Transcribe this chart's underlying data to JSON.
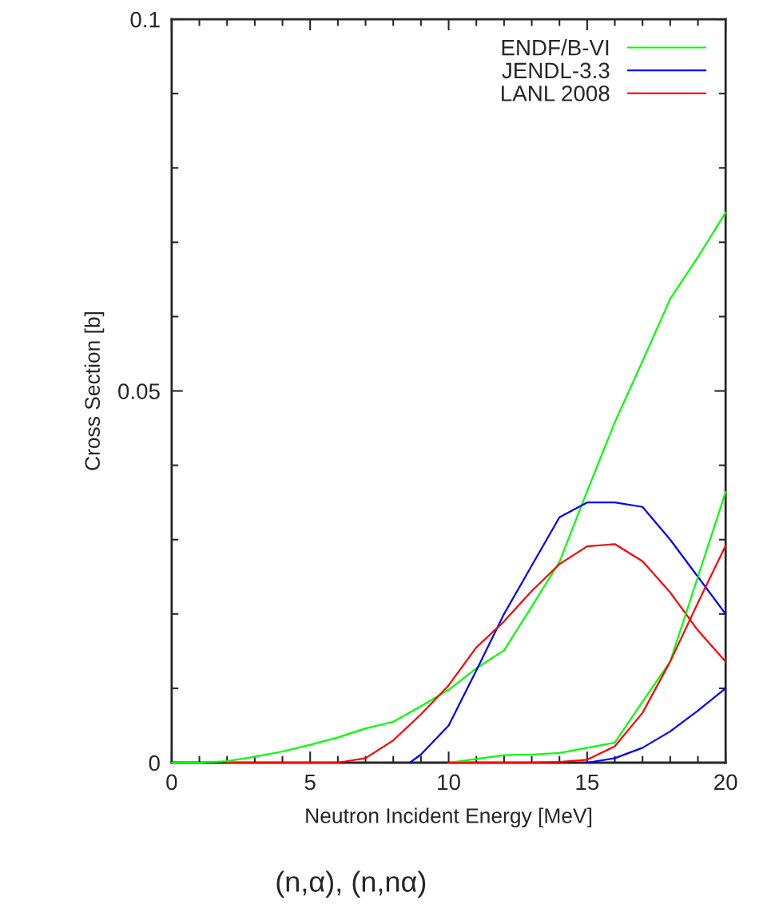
{
  "chart_data": {
    "type": "line",
    "title": "(n,α), (n,nα)",
    "xlabel": "Neutron Incident Energy [MeV]",
    "ylabel": "Cross Section [b]",
    "xlim": [
      0,
      20
    ],
    "ylim": [
      0,
      0.1
    ],
    "xticks": [
      0,
      {
        "value": 1,
        "label": null
      },
      {
        "value": 2,
        "label": null
      },
      {
        "value": 3,
        "label": null
      },
      {
        "value": 4,
        "label": null
      },
      5,
      {
        "value": 6,
        "label": null
      },
      {
        "value": 7,
        "label": null
      },
      {
        "value": 8,
        "label": null
      },
      {
        "value": 9,
        "label": null
      },
      10,
      {
        "value": 11,
        "label": null
      },
      {
        "value": 12,
        "label": null
      },
      {
        "value": 13,
        "label": null
      },
      {
        "value": 14,
        "label": null
      },
      15,
      {
        "value": 16,
        "label": null
      },
      {
        "value": 17,
        "label": null
      },
      {
        "value": 18,
        "label": null
      },
      {
        "value": 19,
        "label": null
      },
      20
    ],
    "yticks": [
      0,
      {
        "value": 0.01,
        "label": null
      },
      {
        "value": 0.02,
        "label": null
      },
      {
        "value": 0.03,
        "label": null
      },
      {
        "value": 0.04,
        "label": null
      },
      0.05,
      {
        "value": 0.06,
        "label": null
      },
      {
        "value": 0.07,
        "label": null
      },
      {
        "value": 0.08,
        "label": null
      },
      {
        "value": 0.09,
        "label": null
      },
      0.1
    ],
    "legend": "top right",
    "grid": false,
    "marker": "none",
    "line_style": "solid",
    "series": [
      {
        "name": "ENDF/B-VI",
        "color": "#00ff00",
        "x": [
          0,
          1,
          2,
          3,
          4,
          5,
          6,
          7,
          8,
          9,
          10,
          11,
          12,
          13,
          14,
          15,
          16,
          17,
          18,
          19,
          20
        ],
        "values": [
          0,
          0,
          0.0002,
          0.0008,
          0.0015,
          0.0024,
          0.0034,
          0.0046,
          0.0055,
          0.0076,
          0.0098,
          0.0127,
          0.0151,
          0.021,
          0.027,
          0.0365,
          0.0458,
          0.054,
          0.0624,
          0.068,
          0.074
        ]
      },
      {
        "name": "JENDL-3.3",
        "color": "#0000ff",
        "x": [
          8.6,
          9,
          10,
          11,
          12,
          13,
          14,
          15,
          16,
          17,
          18,
          19,
          20
        ],
        "values": [
          0,
          0.0011,
          0.005,
          0.0124,
          0.02,
          0.0265,
          0.033,
          0.035,
          0.035,
          0.0344,
          0.03,
          0.025,
          0.02
        ]
      },
      {
        "name": "LANL 2008",
        "color": "#ff0000",
        "x": [
          2,
          3,
          4,
          5,
          6,
          7,
          8,
          9,
          10,
          11,
          12,
          13,
          14,
          15,
          16,
          17,
          18,
          19,
          20
        ],
        "values": [
          0,
          0,
          0,
          0,
          0,
          0.0006,
          0.003,
          0.0065,
          0.0104,
          0.0155,
          0.019,
          0.0231,
          0.0267,
          0.0291,
          0.0294,
          0.0271,
          0.0229,
          0.0178,
          0.0136
        ]
      },
      {
        "color": "#00ff00",
        "x": [
          10,
          11,
          12,
          13,
          14,
          15,
          16,
          17,
          18,
          19,
          20
        ],
        "values": [
          0,
          0.0005,
          0.001,
          0.0011,
          0.0013,
          0.002,
          0.0027,
          0.0082,
          0.0136,
          0.025,
          0.0364
        ]
      },
      {
        "color": "#0000ff",
        "x": [
          15,
          16,
          17,
          18,
          19,
          20
        ],
        "values": [
          0,
          0.0006,
          0.002,
          0.0042,
          0.007,
          0.01
        ]
      },
      {
        "color": "#ff0000",
        "x": [
          10,
          11,
          12,
          13,
          14,
          15,
          16,
          17,
          18,
          19,
          20
        ],
        "values": [
          0,
          0,
          0,
          0,
          0.0001,
          0.0004,
          0.0022,
          0.0067,
          0.0136,
          0.0215,
          0.0292
        ]
      }
    ]
  }
}
